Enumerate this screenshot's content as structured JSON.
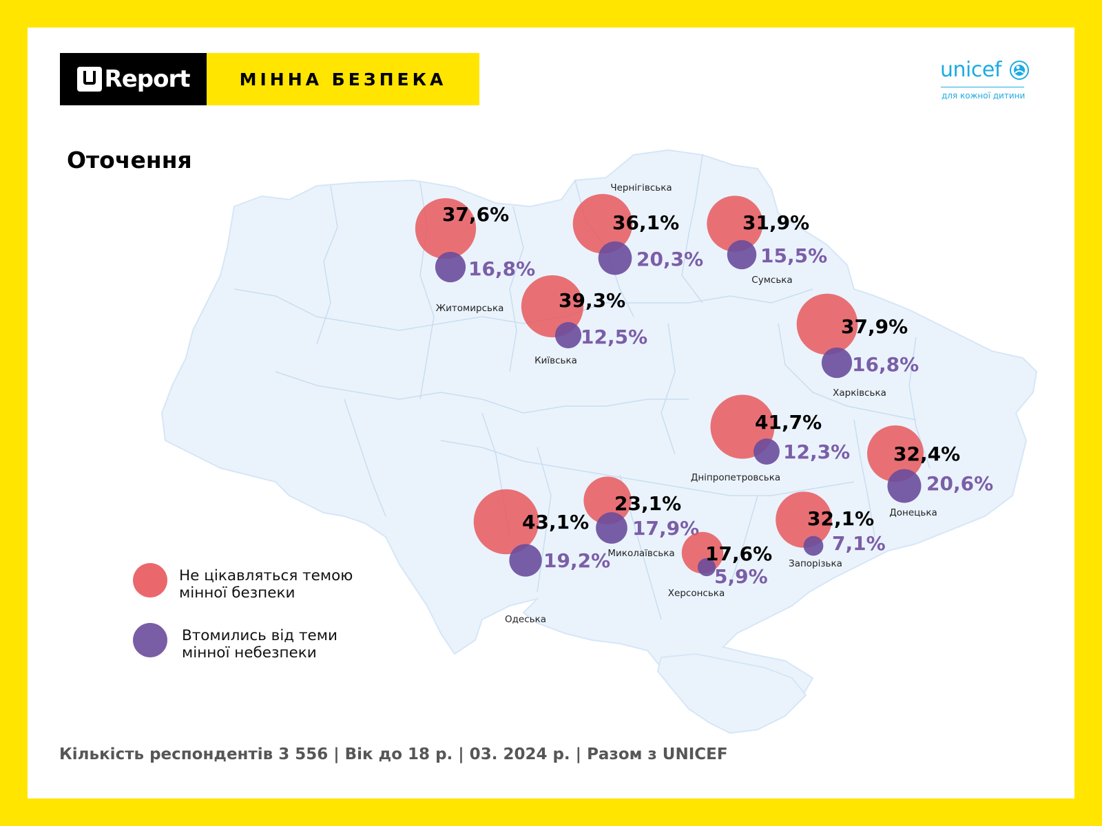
{
  "header": {
    "brand": "Report",
    "topic": "МІННА БЕЗПЕКА",
    "partner_logo_word": "unicef",
    "partner_tagline": "для кожної дитини"
  },
  "section_title": "Оточення",
  "legend": {
    "items": [
      {
        "label_line1": "Не цікавляться темою",
        "label_line2": "мінної безпеки",
        "color": "#E8585C"
      },
      {
        "label_line1": "Втомились від теми",
        "label_line2": "мінної небезпеки",
        "color": "#6A4C9C"
      }
    ]
  },
  "colors": {
    "background_frame": "#FFE500",
    "map_fill": "#EAF3FC",
    "map_border": "#C9DDF0",
    "not_interested": "#E8585C",
    "tired": "#6A4C9C",
    "tired_text": "#7B5EA7"
  },
  "regions": [
    {
      "name": "Житомирська",
      "not_interested": "37,6%",
      "tired": "16,8%",
      "not_interested_value": 37.6,
      "tired_value": 16.8
    },
    {
      "name": "Чернігівська",
      "not_interested": "36,1%",
      "tired": "20,3%",
      "not_interested_value": 36.1,
      "tired_value": 20.3
    },
    {
      "name": "Сумська",
      "not_interested": "31,9%",
      "tired": "15,5%",
      "not_interested_value": 31.9,
      "tired_value": 15.5
    },
    {
      "name": "Київська",
      "not_interested": "39,3%",
      "tired": "12,5%",
      "not_interested_value": 39.3,
      "tired_value": 12.5
    },
    {
      "name": "Харківська",
      "not_interested": "37,9%",
      "tired": "16,8%",
      "not_interested_value": 37.9,
      "tired_value": 16.8
    },
    {
      "name": "Дніпропетровська",
      "not_interested": "41,7%",
      "tired": "12,3%",
      "not_interested_value": 41.7,
      "tired_value": 12.3
    },
    {
      "name": "Донецька",
      "not_interested": "32,4%",
      "tired": "20,6%",
      "not_interested_value": 32.4,
      "tired_value": 20.6
    },
    {
      "name": "Одеська",
      "not_interested": "43,1%",
      "tired": "19,2%",
      "not_interested_value": 43.1,
      "tired_value": 19.2
    },
    {
      "name": "Миколаївська",
      "not_interested": "23,1%",
      "tired": "17,9%",
      "not_interested_value": 23.1,
      "tired_value": 17.9
    },
    {
      "name": "Херсонська",
      "not_interested": "17,6%",
      "tired": "5,9%",
      "not_interested_value": 17.6,
      "tired_value": 5.9
    },
    {
      "name": "Запорізька",
      "not_interested": "32,1%",
      "tired": "7,1%",
      "not_interested_value": 32.1,
      "tired_value": 7.1
    }
  ],
  "footer": "Кількість респондентів 3 556 | Вік до 18 р. | 03. 2024 р. | Разом з UNICEF"
}
